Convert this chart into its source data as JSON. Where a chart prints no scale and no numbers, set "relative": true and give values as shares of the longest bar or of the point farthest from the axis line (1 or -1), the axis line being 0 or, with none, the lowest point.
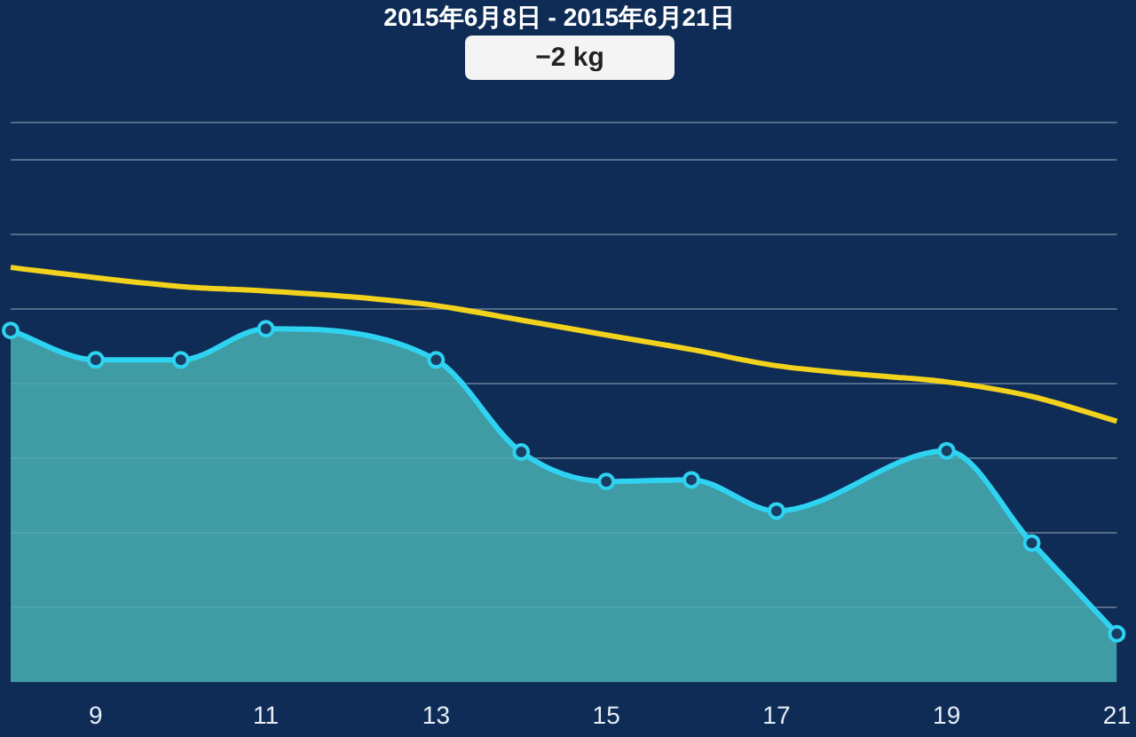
{
  "chart_data": {
    "type": "area",
    "title": "2015年6月8日 - 2015年6月21日",
    "annotations": [
      "−2 kg"
    ],
    "relative": true,
    "grid": "y",
    "legend": false,
    "categories": [
      null,
      "9",
      null,
      "11",
      null,
      "13",
      null,
      "15",
      null,
      "17",
      null,
      "19",
      null,
      "21"
    ],
    "series": [
      {
        "marker": "circle",
        "color": "#2fd3f2",
        "values": [
          0.848,
          0.777,
          0.777,
          0.852,
          null,
          0.777,
          0.555,
          0.484,
          0.488,
          0.413,
          null,
          0.558,
          0.336,
          0.117
        ]
      },
      {
        "type": "line",
        "marker": "none",
        "color": "#f2d21c",
        "values": [
          1,
          0.975,
          0.954,
          0.943,
          0.929,
          0.908,
          0.873,
          0.837,
          0.802,
          0.763,
          0.742,
          0.724,
          0.689,
          0.629
        ]
      }
    ]
  }
}
